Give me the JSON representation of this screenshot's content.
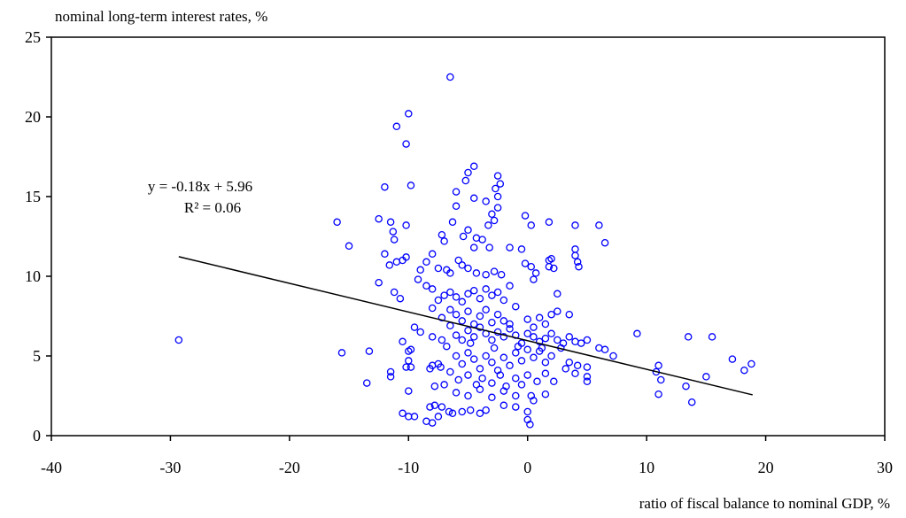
{
  "chart_data": {
    "type": "scatter",
    "y_label": "nominal long-term interest rates, %",
    "x_label": "ratio of fiscal balance to nominal GDP, %",
    "annotations": [
      "y = -0.18x + 5.96",
      "R² = 0.06"
    ],
    "color": "#0000ff",
    "xlim": [
      -40,
      30
    ],
    "ylim": [
      0,
      25
    ],
    "xticks": [
      -40,
      -30,
      -20,
      -10,
      0,
      10,
      20,
      30
    ],
    "yticks": [
      0,
      5,
      10,
      15,
      20,
      25
    ],
    "grid": false,
    "x": [
      -29.3,
      -6.5,
      -10,
      -11,
      -10.2,
      -12,
      -9.8,
      -16,
      -15,
      -12.5,
      -11.5,
      -11.3,
      -10.2,
      -11.2,
      -12,
      -11,
      -10.5,
      -10.2,
      -12.5,
      -11.6,
      -10.7,
      -11.2,
      -15.6,
      -13.3,
      -13.5,
      -11.5,
      -11.5,
      -10.5,
      -10,
      -9.8,
      -10,
      -10.2,
      -9.8,
      -10,
      -10.5,
      -10,
      -9.5,
      -8.5,
      -8,
      -8.2,
      -7.8,
      -7.2,
      -7.5,
      -6.6,
      -6.3,
      -5.5,
      -4.8,
      -4,
      -3.5,
      -2,
      -1,
      0,
      0.2,
      0,
      0.3,
      -5,
      -4.5,
      -2.5,
      -2.7,
      -2.3,
      -5.2,
      -6,
      -6,
      -4.5,
      -3.5,
      -2.5,
      -2.5,
      -3,
      -2.8,
      -3.3,
      -0.2,
      0.3,
      1.8,
      -6.3,
      -7.2,
      -7,
      -5,
      -5.4,
      -4.3,
      -3.8,
      -4.5,
      -3.2,
      -1.5,
      -0.5,
      -8,
      -8.5,
      -9,
      -9.2,
      -7.5,
      -6.8,
      -6.5,
      -5.8,
      -5.5,
      -5,
      -4.3,
      -3.5,
      -2.8,
      -2.2,
      -0.2,
      0.3,
      0.7,
      0.5,
      1.8,
      2.0,
      1.8,
      2.2,
      4.0,
      4.0,
      4.2,
      4.3,
      4.0,
      6.0,
      6.5,
      2.5,
      -8.5,
      -8,
      -7.5,
      -7,
      -6.5,
      -6,
      -5.5,
      -5,
      -4.5,
      -4,
      -3.5,
      -3,
      -2.5,
      -2,
      -1.5,
      -8,
      -7.2,
      -6.5,
      -6,
      -5.5,
      -5,
      -4.5,
      -4,
      -3.5,
      -3,
      -2.5,
      -2,
      -1.5,
      -1,
      0,
      0.5,
      1,
      1.5,
      2,
      2.5,
      3.5,
      -9.5,
      -9,
      -8,
      -7.2,
      -6.5,
      -6,
      -5.5,
      -5,
      -4.5,
      -4,
      -3.5,
      -3,
      -2.5,
      -2,
      -1.5,
      -1,
      -0.5,
      0,
      0.5,
      1,
      1.5,
      2,
      2.5,
      3,
      3.5,
      4,
      4.5,
      5,
      -6,
      -5.5,
      -5,
      -4.5,
      -4,
      -3.5,
      -3,
      -2.5,
      -2,
      -1.5,
      -1,
      -0.5,
      0,
      0.5,
      1,
      1.5,
      2,
      -6.5,
      -5.8,
      -5,
      -4.3,
      -3.8,
      -3,
      -2.3,
      -1.8,
      -1,
      -0.5,
      0,
      0.8,
      1.5,
      2.2,
      3.2,
      4,
      -7,
      -6,
      -5,
      -4,
      -3,
      -2,
      -1,
      0.5,
      1.5,
      -7.5,
      -8,
      -7.3,
      -6.8,
      -4.8,
      -2.8,
      -0.8,
      1.2,
      2.8,
      3.5,
      5,
      5,
      5,
      4.2,
      6,
      6.5,
      7.2,
      9.2,
      10.8,
      11,
      11.2,
      11,
      13.5,
      15.5,
      13.3,
      13.8,
      15,
      17.2,
      18.2,
      18.8,
      -8.2,
      -7.8
    ],
    "values": [
      6.0,
      22.5,
      20.2,
      19.4,
      18.3,
      15.6,
      15.7,
      13.4,
      11.9,
      13.6,
      13.4,
      12.8,
      13.2,
      12.3,
      11.4,
      10.9,
      11.0,
      11.2,
      9.6,
      10.7,
      8.6,
      9.0,
      5.2,
      5.3,
      3.3,
      3.7,
      4.0,
      5.9,
      5.3,
      5.4,
      4.7,
      4.3,
      4.3,
      2.8,
      1.4,
      1.2,
      1.2,
      0.9,
      0.8,
      1.8,
      1.9,
      1.8,
      1.2,
      1.5,
      1.4,
      1.5,
      1.6,
      1.4,
      1.6,
      1.9,
      1.8,
      1.5,
      0.7,
      1.0,
      2.5,
      16.5,
      16.9,
      16.3,
      15.5,
      15.8,
      16.0,
      15.3,
      14.4,
      14.9,
      14.7,
      15.0,
      14.3,
      13.9,
      13.5,
      13.2,
      13.8,
      13.2,
      13.4,
      13.4,
      12.6,
      12.2,
      12.9,
      12.5,
      12.4,
      12.3,
      11.8,
      11.8,
      11.8,
      11.7,
      11.4,
      10.9,
      10.4,
      9.8,
      10.5,
      10.4,
      10.2,
      11.0,
      10.7,
      10.5,
      10.2,
      10.1,
      10.3,
      10.1,
      10.8,
      10.6,
      10.2,
      9.8,
      11.0,
      11.1,
      10.6,
      10.5,
      11.7,
      11.3,
      10.9,
      10.6,
      13.2,
      13.2,
      12.1,
      8.9,
      9.4,
      9.2,
      8.5,
      8.8,
      9.0,
      8.7,
      8.4,
      8.9,
      9.1,
      8.6,
      9.2,
      8.8,
      9.0,
      8.5,
      9.4,
      8.0,
      7.4,
      7.9,
      7.6,
      7.2,
      7.8,
      7.0,
      7.5,
      7.9,
      7.1,
      7.6,
      7.2,
      7.0,
      8.1,
      7.3,
      6.8,
      7.4,
      7.0,
      7.6,
      7.8,
      7.6,
      6.8,
      6.5,
      6.2,
      6.0,
      6.9,
      6.3,
      6.0,
      6.6,
      6.2,
      6.8,
      6.4,
      6.0,
      6.5,
      6.2,
      6.7,
      6.3,
      5.8,
      6.4,
      6.2,
      5.9,
      6.1,
      6.4,
      6.0,
      5.8,
      6.2,
      5.9,
      5.8,
      6.0,
      5.0,
      4.5,
      5.2,
      4.8,
      4.2,
      5.0,
      4.6,
      4.1,
      4.9,
      4.4,
      5.2,
      4.7,
      5.4,
      4.9,
      5.3,
      4.6,
      5.0,
      4.0,
      3.5,
      3.8,
      3.2,
      3.6,
      3.3,
      3.8,
      3.1,
      3.6,
      3.2,
      3.8,
      3.4,
      3.9,
      3.4,
      4.2,
      3.9,
      3.2,
      2.7,
      2.5,
      2.9,
      2.4,
      2.8,
      2.5,
      2.2,
      2.6,
      4.5,
      4.4,
      4.3,
      5.6,
      5.8,
      5.5,
      5.6,
      5.5,
      5.5,
      4.6,
      4.3,
      3.7,
      3.4,
      4.4,
      5.5,
      5.4,
      5.0,
      6.4,
      4.0,
      4.4,
      3.5,
      2.6,
      6.2,
      6.2,
      3.1,
      2.1,
      3.7,
      4.8,
      4.1,
      4.5,
      4.2,
      3.1
    ],
    "trendline": {
      "x": [
        -29.3,
        18.9
      ],
      "values": [
        11.23,
        2.56
      ],
      "color": "#000000"
    }
  }
}
